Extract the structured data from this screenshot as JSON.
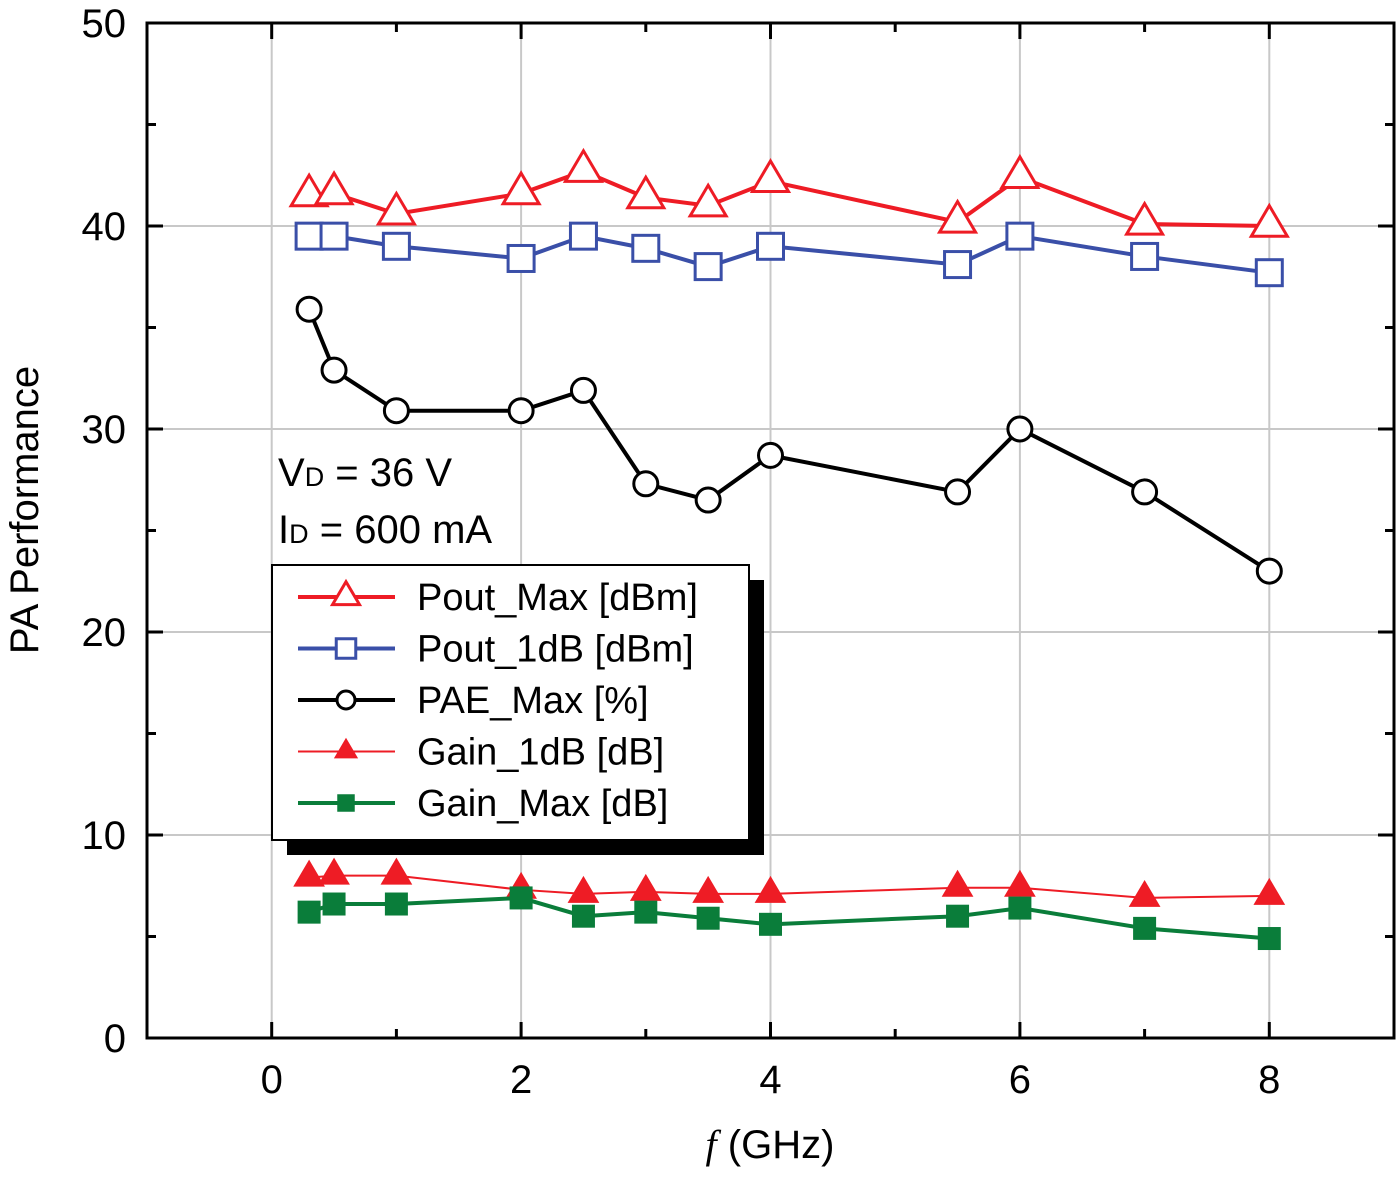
{
  "chart_data": {
    "type": "line",
    "title": "",
    "xlabel_italic": "f",
    "xlabel_rest": " (GHz)",
    "ylabel": "PA Performance",
    "xlim": [
      -1,
      9
    ],
    "ylim": [
      0,
      50
    ],
    "xticks": [
      0,
      2,
      4,
      6,
      8
    ],
    "yticks": [
      0,
      10,
      20,
      30,
      40,
      50
    ],
    "grid": true,
    "legend_placement": "center-left",
    "annotations": {
      "vd_main": "V",
      "vd_sub": "D",
      "vd_rest": " = 36 V",
      "id_main": "I",
      "id_sub": "D",
      "id_rest": " = 600 mA"
    },
    "x": [
      0.3,
      0.5,
      1,
      2,
      2.5,
      3,
      3.5,
      4,
      5.5,
      6,
      7,
      8
    ],
    "series": [
      {
        "name": "Pout_Max [dBm]",
        "color": "#ee1c25",
        "marker": "triangle-open",
        "values": [
          41.5,
          41.6,
          40.6,
          41.6,
          42.7,
          41.4,
          41.0,
          42.2,
          40.2,
          42.4,
          40.1,
          40.0
        ]
      },
      {
        "name": "Pout_1dB [dBm]",
        "color": "#3a4fa8",
        "marker": "square-open",
        "values": [
          39.5,
          39.5,
          39.0,
          38.4,
          39.5,
          38.9,
          38.0,
          39.0,
          38.1,
          39.5,
          38.5,
          37.7
        ]
      },
      {
        "name": "PAE_Max [%]",
        "color": "#000000",
        "marker": "circle-open",
        "values": [
          35.9,
          32.9,
          30.9,
          30.9,
          31.9,
          27.3,
          26.5,
          28.7,
          26.9,
          30.0,
          26.9,
          23.0
        ]
      },
      {
        "name": "Gain_1dB [dB]",
        "color": "#ee1c25",
        "marker": "triangle-filled",
        "values": [
          7.9,
          8.0,
          8.0,
          7.3,
          7.1,
          7.2,
          7.1,
          7.1,
          7.4,
          7.4,
          6.9,
          7.0
        ]
      },
      {
        "name": "Gain_Max [dB]",
        "color": "#0a7d3a",
        "marker": "square-filled",
        "values": [
          6.2,
          6.6,
          6.6,
          6.9,
          6.0,
          6.2,
          5.9,
          5.6,
          6.0,
          6.4,
          5.4,
          4.9
        ]
      }
    ]
  }
}
